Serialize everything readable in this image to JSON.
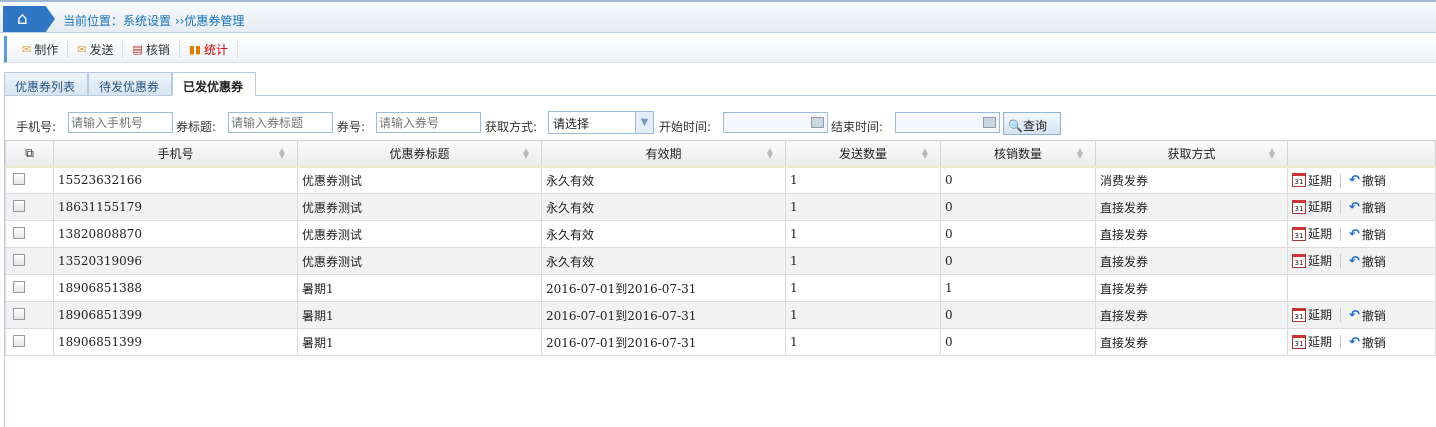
{
  "breadcrumb": {
    "text": "当前位置：系统设置 ››优惠券管理"
  },
  "toolbar": [
    {
      "label": "制作",
      "icon": "make-icon"
    },
    {
      "label": "发送",
      "icon": "send-icon"
    },
    {
      "label": "核销",
      "icon": "verify-icon"
    },
    {
      "label": "统计",
      "icon": "stats-icon",
      "color": "#cc0000"
    }
  ],
  "tabs": [
    {
      "label": "优惠券列表"
    },
    {
      "label": "待发优惠券"
    },
    {
      "label": "已发优惠券",
      "active": true
    }
  ],
  "filter": {
    "phone_label": "手机号:",
    "phone_placeholder": "请输入手机号",
    "title_label": "券标题:",
    "title_placeholder": "请输入券标题",
    "code_label": "券号:",
    "code_placeholder": "请输入券号",
    "method_label": "获取方式:",
    "method_value": "请选择",
    "start_label": "开始时间:",
    "end_label": "结束时间:",
    "query": "查询"
  },
  "table": {
    "headers": [
      "手机号",
      "优惠券标题",
      "有效期",
      "发送数量",
      "核销数量",
      "获取方式"
    ],
    "rows": [
      [
        "15523632166",
        "优惠券测试",
        "永久有效",
        "1",
        "0",
        "消费发券",
        true
      ],
      [
        "18631155179",
        "优惠券测试",
        "永久有效",
        "1",
        "0",
        "直接发券",
        true
      ],
      [
        "13820808870",
        "优惠券测试",
        "永久有效",
        "1",
        "0",
        "直接发券",
        true
      ],
      [
        "13520319096",
        "优惠券测试",
        "永久有效",
        "1",
        "0",
        "直接发券",
        true
      ],
      [
        "18906851388",
        "暑期1",
        "2016-07-01到2016-07-31",
        "1",
        "1",
        "直接发券",
        false
      ],
      [
        "18906851399",
        "暑期1",
        "2016-07-01到2016-07-31",
        "1",
        "0",
        "直接发券",
        true
      ],
      [
        "18906851399",
        "暑期1",
        "2016-07-01到2016-07-31",
        "1",
        "0",
        "直接发券",
        true
      ]
    ],
    "extend_label": "延期",
    "revoke_label": "撤销"
  }
}
